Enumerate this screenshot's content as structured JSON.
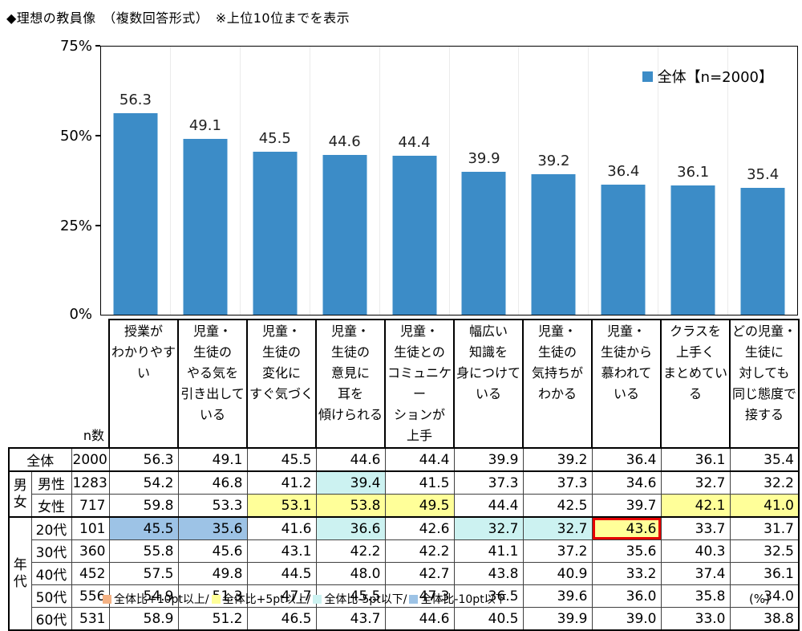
{
  "title": "◆理想の教員像　（複数回答形式）　※上位10位までを表示",
  "chart_data": {
    "type": "bar",
    "title": "理想の教員像（複数回答形式）上位10位",
    "legend": "全体【n=2000】",
    "xlabel": "",
    "ylabel": "",
    "ylim": [
      0,
      75
    ],
    "yticks": [
      "75%",
      "50%",
      "25%",
      "0%"
    ],
    "grid": "vertical-separators-only",
    "legend_position": "top-right-inside",
    "bar_color": "#3C8CC7",
    "categories": [
      "授業が\nわかりやすい",
      "児童・\n生徒の\nやる気を\n引き出して\nいる",
      "児童・\n生徒の\n変化に\nすぐ気づく",
      "児童・\n生徒の\n意見に\n耳を\n傾けられる",
      "児童・\n生徒との\nコミュニケー\nションが\n上手",
      "幅広い\n知識を\n身につけて\nいる",
      "児童・\n生徒の\n気持ちが\nわかる",
      "児童・\n生徒から\n慕われて\nいる",
      "クラスを\n上手く\nまとめている",
      "どの児童・\n生徒に\n対しても\n同じ態度で\n接する"
    ],
    "values": [
      56.3,
      49.1,
      45.5,
      44.6,
      44.4,
      39.9,
      39.2,
      36.4,
      36.1,
      35.4
    ]
  },
  "table": {
    "n_header": "n数",
    "groups": [
      {
        "label": "男\n女"
      },
      {
        "label": "年\n代"
      }
    ],
    "highlight_colors": {
      "plus10": "#F4B183",
      "plus5": "#FFFF99",
      "minus5": "#CCF2F1",
      "minus10": "#9DC3E6",
      "red_border": "#E60000"
    },
    "rows": [
      {
        "label": "全体",
        "n": "2000",
        "values": [
          "56.3",
          "49.1",
          "45.5",
          "44.6",
          "44.4",
          "39.9",
          "39.2",
          "36.4",
          "36.1",
          "35.4"
        ],
        "highlights": {}
      },
      {
        "label": "男性",
        "n": "1283",
        "values": [
          "54.2",
          "46.8",
          "41.2",
          "39.4",
          "41.5",
          "37.3",
          "37.3",
          "34.6",
          "32.7",
          "32.2"
        ],
        "highlights": {
          "3": "minus5"
        }
      },
      {
        "label": "女性",
        "n": "717",
        "values": [
          "59.8",
          "53.3",
          "53.1",
          "53.8",
          "49.5",
          "44.4",
          "42.5",
          "39.7",
          "42.1",
          "41.0"
        ],
        "highlights": {
          "2": "plus5",
          "3": "plus5",
          "4": "plus5",
          "8": "plus5",
          "9": "plus5"
        }
      },
      {
        "label": "20代",
        "n": "101",
        "values": [
          "45.5",
          "35.6",
          "41.6",
          "36.6",
          "42.6",
          "32.7",
          "32.7",
          "43.6",
          "33.7",
          "31.7"
        ],
        "highlights": {
          "0": "minus10",
          "1": "minus10",
          "3": "minus5",
          "5": "minus5",
          "6": "minus5",
          "7": "plus5-red"
        }
      },
      {
        "label": "30代",
        "n": "360",
        "values": [
          "55.8",
          "45.6",
          "43.1",
          "42.2",
          "42.2",
          "41.1",
          "37.2",
          "35.6",
          "40.3",
          "32.5"
        ],
        "highlights": {}
      },
      {
        "label": "40代",
        "n": "452",
        "values": [
          "57.5",
          "49.8",
          "44.5",
          "48.0",
          "42.7",
          "43.8",
          "40.9",
          "33.2",
          "37.4",
          "36.1"
        ],
        "highlights": {}
      },
      {
        "label": "50代",
        "n": "556",
        "values": [
          "54.9",
          "51.3",
          "47.7",
          "45.5",
          "47.3",
          "36.5",
          "39.6",
          "36.0",
          "35.8",
          "34.0"
        ],
        "highlights": {}
      },
      {
        "label": "60代",
        "n": "531",
        "values": [
          "58.9",
          "51.2",
          "46.5",
          "43.7",
          "44.6",
          "40.5",
          "39.9",
          "39.0",
          "33.0",
          "38.8"
        ],
        "highlights": {}
      }
    ]
  },
  "footer": {
    "legend": [
      {
        "label": "全体比+10pt以上/",
        "color": "#F4B183"
      },
      {
        "label": "全体比+5pt以上/",
        "color": "#FFFF99"
      },
      {
        "label": "全体比-5pt以下/",
        "color": "#CCF2F1"
      },
      {
        "label": "全体比-10pt以下",
        "color": "#9DC3E6"
      }
    ],
    "unit": "(%)"
  }
}
